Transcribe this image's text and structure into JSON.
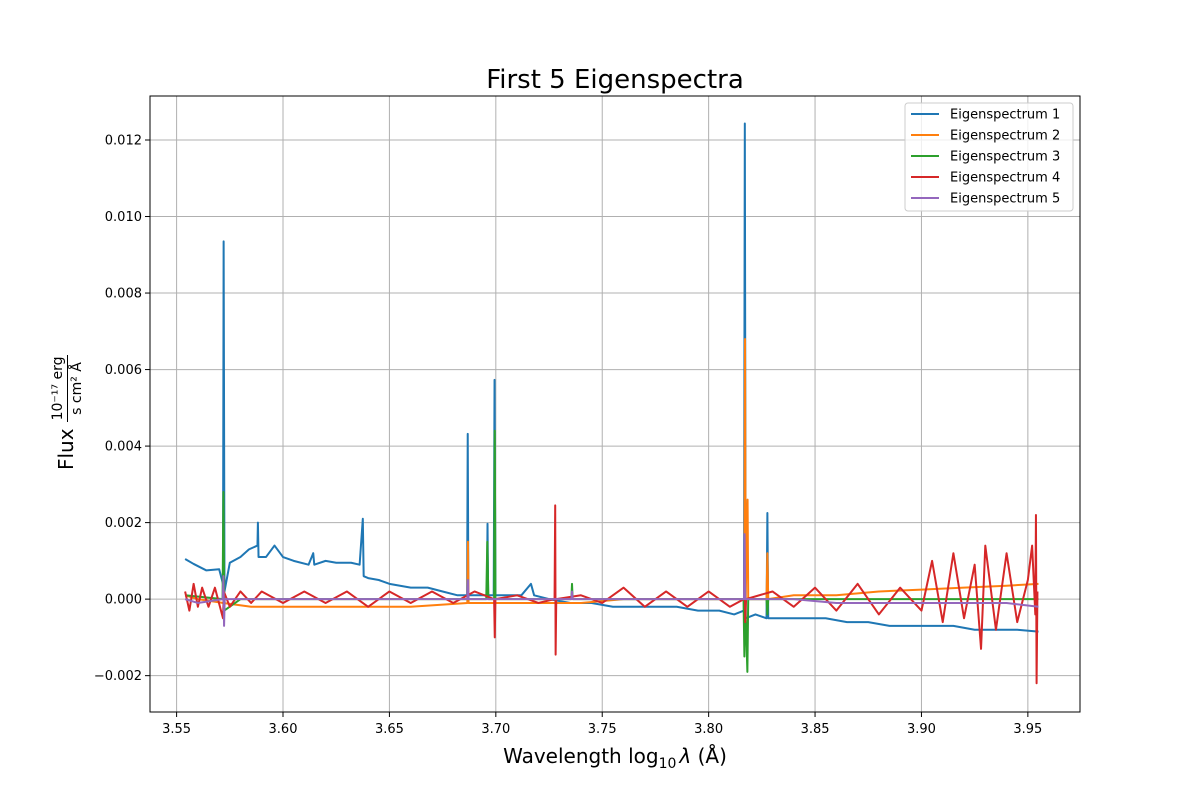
{
  "chart_data": {
    "type": "line",
    "title": "First 5 Eigenspectra",
    "xlabel": "Wavelength log",
    "xlabel_sub": "10",
    "xlabel_lambda": "λ",
    "xlabel_unit": " (Å)",
    "ylabel": "Flux",
    "ylabel_num": "10⁻¹⁷ erg",
    "ylabel_den": "s cm² Å",
    "xlim": [
      3.5375,
      3.9745
    ],
    "ylim": [
      -0.00295,
      0.01315
    ],
    "xticks": [
      "3.55",
      "3.60",
      "3.65",
      "3.70",
      "3.75",
      "3.80",
      "3.85",
      "3.90",
      "3.95"
    ],
    "yticks": [
      "−0.002",
      "0.000",
      "0.002",
      "0.004",
      "0.006",
      "0.008",
      "0.010",
      "0.012"
    ],
    "grid": true,
    "legend_position": "top-right",
    "series": [
      {
        "name": "Eigenspectrum 1",
        "color": "#1f77b4",
        "points": [
          [
            3.554,
            0.00105
          ],
          [
            3.558,
            0.00092
          ],
          [
            3.564,
            0.00075
          ],
          [
            3.57,
            0.00078
          ],
          [
            3.5718,
            0.0004
          ],
          [
            3.5721,
            0.00935
          ],
          [
            3.5725,
            0.0002
          ],
          [
            3.575,
            0.00095
          ],
          [
            3.58,
            0.0011
          ],
          [
            3.584,
            0.0013
          ],
          [
            3.588,
            0.0014
          ],
          [
            3.5882,
            0.002
          ],
          [
            3.5885,
            0.0011
          ],
          [
            3.592,
            0.0011
          ],
          [
            3.596,
            0.0014
          ],
          [
            3.6,
            0.0011
          ],
          [
            3.605,
            0.001
          ],
          [
            3.612,
            0.0009
          ],
          [
            3.6142,
            0.0012
          ],
          [
            3.6147,
            0.0009
          ],
          [
            3.62,
            0.001
          ],
          [
            3.625,
            0.00095
          ],
          [
            3.632,
            0.00095
          ],
          [
            3.636,
            0.0009
          ],
          [
            3.6375,
            0.0021
          ],
          [
            3.6379,
            0.0006
          ],
          [
            3.64,
            0.00055
          ],
          [
            3.645,
            0.0005
          ],
          [
            3.65,
            0.0004
          ],
          [
            3.66,
            0.0003
          ],
          [
            3.668,
            0.0003
          ],
          [
            3.675,
            0.0002
          ],
          [
            3.682,
            0.0001
          ],
          [
            3.6865,
            0.0001
          ],
          [
            3.6868,
            0.00432
          ],
          [
            3.6871,
            0.0001
          ],
          [
            3.692,
            0.0001
          ],
          [
            3.6958,
            0.0001
          ],
          [
            3.6961,
            0.00197
          ],
          [
            3.6964,
            0.0001
          ],
          [
            3.699,
            0.0001
          ],
          [
            3.6994,
            0.00573
          ],
          [
            3.6998,
            0.0001
          ],
          [
            3.705,
            0.0001
          ],
          [
            3.712,
            0.0001
          ],
          [
            3.7165,
            0.0004
          ],
          [
            3.718,
            0.0001
          ],
          [
            3.725,
            0.0
          ],
          [
            3.735,
            -0.0001
          ],
          [
            3.745,
            -0.0001
          ],
          [
            3.755,
            -0.0002
          ],
          [
            3.765,
            -0.0002
          ],
          [
            3.775,
            -0.0002
          ],
          [
            3.785,
            -0.0002
          ],
          [
            3.795,
            -0.0003
          ],
          [
            3.805,
            -0.0003
          ],
          [
            3.812,
            -0.0004
          ],
          [
            3.8166,
            -0.0003
          ],
          [
            3.817,
            0.01243
          ],
          [
            3.8174,
            -0.0005
          ],
          [
            3.822,
            -0.0004
          ],
          [
            3.8272,
            -0.0005
          ],
          [
            3.8276,
            0.00225
          ],
          [
            3.828,
            -0.0005
          ],
          [
            3.835,
            -0.0005
          ],
          [
            3.845,
            -0.0005
          ],
          [
            3.855,
            -0.0005
          ],
          [
            3.865,
            -0.0006
          ],
          [
            3.875,
            -0.0006
          ],
          [
            3.885,
            -0.0007
          ],
          [
            3.895,
            -0.0007
          ],
          [
            3.905,
            -0.0007
          ],
          [
            3.915,
            -0.0007
          ],
          [
            3.925,
            -0.0008
          ],
          [
            3.935,
            -0.0008
          ],
          [
            3.945,
            -0.0008
          ],
          [
            3.955,
            -0.00085
          ]
        ]
      },
      {
        "name": "Eigenspectrum 2",
        "color": "#ff7f0e",
        "points": [
          [
            3.554,
            0.0001
          ],
          [
            3.56,
            0.0
          ],
          [
            3.572,
            -0.0001
          ],
          [
            3.585,
            -0.0002
          ],
          [
            3.6,
            -0.0002
          ],
          [
            3.62,
            -0.0002
          ],
          [
            3.64,
            -0.0002
          ],
          [
            3.66,
            -0.0002
          ],
          [
            3.6866,
            -0.0001
          ],
          [
            3.6869,
            0.0015
          ],
          [
            3.6872,
            -0.0001
          ],
          [
            3.7,
            -0.0001
          ],
          [
            3.72,
            -0.0001
          ],
          [
            3.74,
            -0.0001
          ],
          [
            3.76,
            0.0
          ],
          [
            3.78,
            0.0
          ],
          [
            3.8,
            0.0
          ],
          [
            3.8168,
            0.0
          ],
          [
            3.8171,
            0.0068
          ],
          [
            3.8174,
            0.0
          ],
          [
            3.8183,
            0.0026
          ],
          [
            3.8186,
            0.0
          ],
          [
            3.8272,
            0.0
          ],
          [
            3.8276,
            0.0012
          ],
          [
            3.828,
            0.0
          ],
          [
            3.84,
            0.0001
          ],
          [
            3.86,
            0.0001
          ],
          [
            3.88,
            0.0002
          ],
          [
            3.9,
            0.00025
          ],
          [
            3.92,
            0.0003
          ],
          [
            3.94,
            0.00035
          ],
          [
            3.955,
            0.0004
          ]
        ]
      },
      {
        "name": "Eigenspectrum 3",
        "color": "#2ca02c",
        "points": [
          [
            3.554,
            0.0001
          ],
          [
            3.5716,
            0.0
          ],
          [
            3.572,
            0.0028
          ],
          [
            3.5724,
            -0.0003
          ],
          [
            3.58,
            0.0
          ],
          [
            3.62,
            0.0
          ],
          [
            3.66,
            0.0
          ],
          [
            3.6955,
            0.0
          ],
          [
            3.696,
            0.0015
          ],
          [
            3.6965,
            0.0
          ],
          [
            3.6992,
            0.0
          ],
          [
            3.6995,
            0.0044
          ],
          [
            3.6998,
            0.0
          ],
          [
            3.7355,
            0.0
          ],
          [
            3.7358,
            0.0004
          ],
          [
            3.7361,
            0.0
          ],
          [
            3.78,
            0.0
          ],
          [
            3.8164,
            0.0
          ],
          [
            3.8168,
            -0.0015
          ],
          [
            3.8172,
            0.0
          ],
          [
            3.8182,
            -0.0019
          ],
          [
            3.8186,
            0.0
          ],
          [
            3.8272,
            0.0
          ],
          [
            3.8276,
            -0.0004
          ],
          [
            3.828,
            0.0
          ],
          [
            3.88,
            0.0
          ],
          [
            3.955,
            0.0
          ]
        ]
      },
      {
        "name": "Eigenspectrum 4",
        "color": "#d62728",
        "points": [
          [
            3.554,
            0.0002
          ],
          [
            3.556,
            -0.0003
          ],
          [
            3.558,
            0.0004
          ],
          [
            3.56,
            -0.0002
          ],
          [
            3.562,
            0.0003
          ],
          [
            3.565,
            -0.0002
          ],
          [
            3.568,
            0.0003
          ],
          [
            3.5718,
            -0.0005
          ],
          [
            3.5722,
            0.0002
          ],
          [
            3.575,
            -0.0002
          ],
          [
            3.58,
            0.0002
          ],
          [
            3.585,
            -0.0001
          ],
          [
            3.59,
            0.0002
          ],
          [
            3.6,
            -0.0001
          ],
          [
            3.61,
            0.0002
          ],
          [
            3.62,
            -0.0001
          ],
          [
            3.63,
            0.0002
          ],
          [
            3.64,
            -0.0002
          ],
          [
            3.65,
            0.0002
          ],
          [
            3.66,
            -0.0001
          ],
          [
            3.67,
            0.0002
          ],
          [
            3.68,
            -0.0001
          ],
          [
            3.69,
            0.0002
          ],
          [
            3.6992,
            0.0
          ],
          [
            3.6995,
            -0.001
          ],
          [
            3.6998,
            0.0
          ],
          [
            3.71,
            0.0001
          ],
          [
            3.72,
            -0.0001
          ],
          [
            3.7276,
            0.0
          ],
          [
            3.7279,
            0.00245
          ],
          [
            3.7281,
            -0.00145
          ],
          [
            3.7284,
            0.0
          ],
          [
            3.74,
            0.0001
          ],
          [
            3.75,
            -0.0001
          ],
          [
            3.76,
            0.0003
          ],
          [
            3.77,
            -0.0002
          ],
          [
            3.78,
            0.0002
          ],
          [
            3.79,
            -0.0002
          ],
          [
            3.8,
            0.0002
          ],
          [
            3.81,
            -0.0002
          ],
          [
            3.8166,
            0.0
          ],
          [
            3.8169,
            0.0009
          ],
          [
            3.8172,
            -0.0006
          ],
          [
            3.8176,
            0.0
          ],
          [
            3.83,
            0.0002
          ],
          [
            3.84,
            -0.0002
          ],
          [
            3.85,
            0.0003
          ],
          [
            3.86,
            -0.0003
          ],
          [
            3.87,
            0.0004
          ],
          [
            3.88,
            -0.0004
          ],
          [
            3.89,
            0.0003
          ],
          [
            3.9,
            -0.0003
          ],
          [
            3.905,
            0.001
          ],
          [
            3.91,
            -0.0006
          ],
          [
            3.915,
            0.0012
          ],
          [
            3.92,
            -0.0005
          ],
          [
            3.925,
            0.0009
          ],
          [
            3.928,
            -0.0013
          ],
          [
            3.93,
            0.0014
          ],
          [
            3.935,
            -0.0008
          ],
          [
            3.94,
            0.0012
          ],
          [
            3.945,
            -0.0006
          ],
          [
            3.95,
            0.0005
          ],
          [
            3.952,
            0.0014
          ],
          [
            3.9535,
            -0.0004
          ],
          [
            3.9538,
            0.0022
          ],
          [
            3.9541,
            -0.0022
          ],
          [
            3.9545,
            0.0002
          ]
        ]
      },
      {
        "name": "Eigenspectrum 5",
        "color": "#9467bd",
        "points": [
          [
            3.554,
            0.0
          ],
          [
            3.56,
            -0.0001
          ],
          [
            3.5717,
            0.0
          ],
          [
            3.572,
            0.0006
          ],
          [
            3.5723,
            -0.0007
          ],
          [
            3.5726,
            0.0
          ],
          [
            3.59,
            0.0
          ],
          [
            3.62,
            0.0
          ],
          [
            3.64,
            0.0
          ],
          [
            3.66,
            0.0
          ],
          [
            3.68,
            0.0
          ],
          [
            3.6866,
            0.0
          ],
          [
            3.6869,
            0.0005
          ],
          [
            3.6872,
            0.0
          ],
          [
            3.7,
            0.0
          ],
          [
            3.72,
            0.0
          ],
          [
            3.7355,
            0.0
          ],
          [
            3.7358,
            0.0002
          ],
          [
            3.7361,
            0.0
          ],
          [
            3.76,
            0.0
          ],
          [
            3.78,
            0.0
          ],
          [
            3.8,
            0.0
          ],
          [
            3.8166,
            0.0
          ],
          [
            3.8169,
            0.0017
          ],
          [
            3.8172,
            0.0
          ],
          [
            3.84,
            0.0
          ],
          [
            3.86,
            -0.0001
          ],
          [
            3.88,
            -0.0001
          ],
          [
            3.9,
            -0.0001
          ],
          [
            3.92,
            -0.0001
          ],
          [
            3.94,
            -0.0001
          ],
          [
            3.955,
            -0.0002
          ]
        ]
      }
    ]
  }
}
